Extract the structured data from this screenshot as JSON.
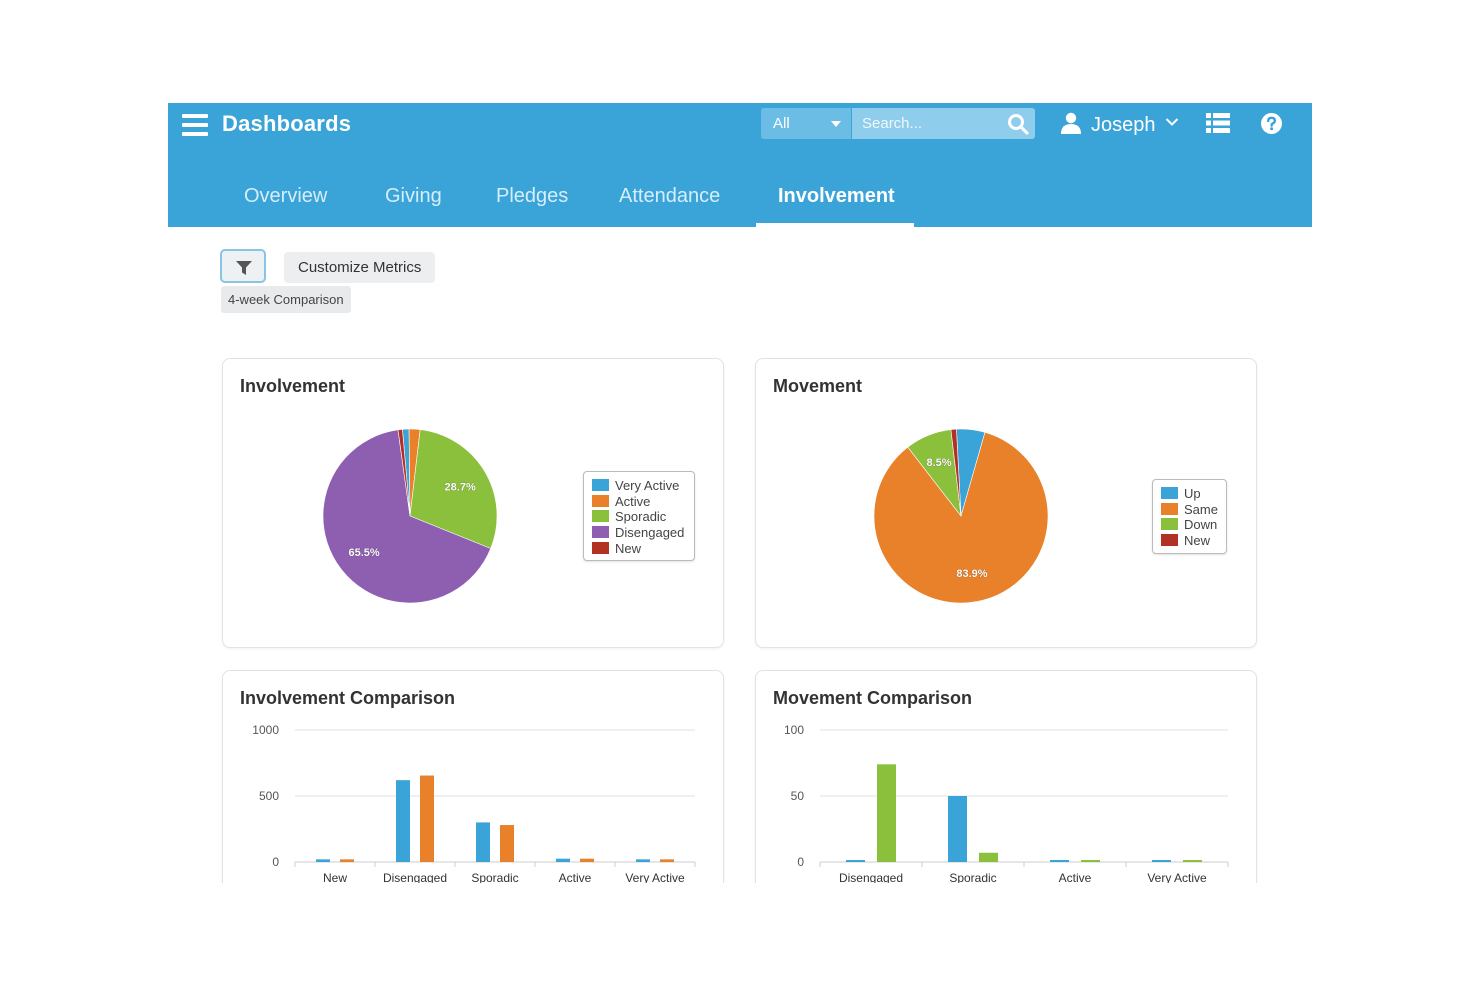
{
  "header": {
    "title": "Dashboards",
    "search": {
      "scope": "All",
      "placeholder": "Search..."
    },
    "user": {
      "name": "Joseph"
    }
  },
  "tabs": [
    {
      "label": "Overview"
    },
    {
      "label": "Giving"
    },
    {
      "label": "Pledges"
    },
    {
      "label": "Attendance"
    },
    {
      "label": "Involvement",
      "active": true
    }
  ],
  "toolbar": {
    "customize_label": "Customize Metrics",
    "comparison_label": "4-week Comparison"
  },
  "colors": {
    "header_bg": "#3aa3d8",
    "blue": "#3aa3d8",
    "orange": "#e8812a",
    "green": "#8bc03d",
    "purple": "#8e5fb0",
    "red": "#b23125"
  },
  "chart_data": [
    {
      "type": "pie",
      "title": "Involvement",
      "categories": [
        "Very Active",
        "Active",
        "Sporadic",
        "Disengaged",
        "New"
      ],
      "values": [
        1.2,
        2.0,
        28.7,
        65.5,
        0.8
      ],
      "data_labels": [
        "",
        "",
        "28.7%",
        "65.5%",
        ""
      ],
      "legend_position": "right"
    },
    {
      "type": "pie",
      "title": "Movement",
      "categories": [
        "Up",
        "Same",
        "Down",
        "New"
      ],
      "values": [
        5.2,
        83.9,
        8.5,
        1.0
      ],
      "data_labels": [
        "",
        "83.9%",
        "8.5%",
        ""
      ],
      "legend_position": "right"
    },
    {
      "type": "bar",
      "title": "Involvement Comparison",
      "categories": [
        "New",
        "Disengaged",
        "Sporadic",
        "Active",
        "Very Active"
      ],
      "series": [
        {
          "values": [
            20,
            620,
            300,
            25,
            20
          ]
        },
        {
          "values": [
            20,
            655,
            280,
            25,
            20
          ]
        }
      ],
      "yticks": [
        "0",
        "500",
        "1000"
      ],
      "ylim": [
        0,
        1000
      ],
      "grid": true
    },
    {
      "type": "bar",
      "title": "Movement Comparison",
      "categories": [
        "Disengaged",
        "Sporadic",
        "Active",
        "Very Active"
      ],
      "series": [
        {
          "values": [
            1.5,
            50,
            1.5,
            1.5
          ]
        },
        {
          "values": [
            74,
            7,
            1.5,
            1.5
          ]
        }
      ],
      "yticks": [
        "0",
        "50",
        "100"
      ],
      "ylim": [
        0,
        100
      ],
      "grid": true
    }
  ]
}
